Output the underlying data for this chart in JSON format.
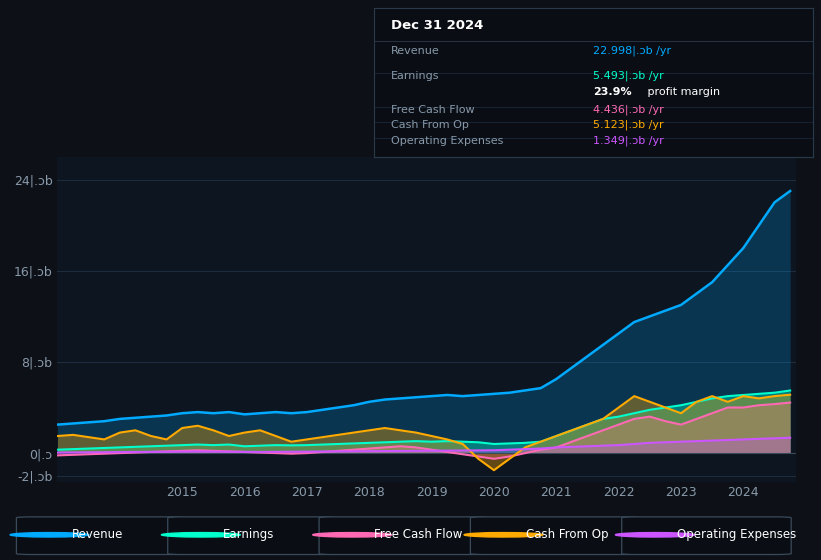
{
  "bg_color": "#0d1117",
  "plot_bg_color": "#0d1520",
  "grid_color": "#1e2d40",
  "years": [
    2013.0,
    2013.25,
    2013.5,
    2013.75,
    2014.0,
    2014.25,
    2014.5,
    2014.75,
    2015.0,
    2015.25,
    2015.5,
    2015.75,
    2016.0,
    2016.25,
    2016.5,
    2016.75,
    2017.0,
    2017.25,
    2017.5,
    2017.75,
    2018.0,
    2018.25,
    2018.5,
    2018.75,
    2019.0,
    2019.25,
    2019.5,
    2019.75,
    2020.0,
    2020.25,
    2020.5,
    2020.75,
    2021.0,
    2021.25,
    2021.5,
    2021.75,
    2022.0,
    2022.25,
    2022.5,
    2022.75,
    2023.0,
    2023.25,
    2023.5,
    2023.75,
    2024.0,
    2024.25,
    2024.5,
    2024.75
  ],
  "revenue": [
    2.5,
    2.6,
    2.7,
    2.8,
    3.0,
    3.1,
    3.2,
    3.3,
    3.5,
    3.6,
    3.5,
    3.6,
    3.4,
    3.5,
    3.6,
    3.5,
    3.6,
    3.8,
    4.0,
    4.2,
    4.5,
    4.7,
    4.8,
    4.9,
    5.0,
    5.1,
    5.0,
    5.1,
    5.2,
    5.3,
    5.5,
    5.7,
    6.5,
    7.5,
    8.5,
    9.5,
    10.5,
    11.5,
    12.0,
    12.5,
    13.0,
    14.0,
    15.0,
    16.5,
    18.0,
    20.0,
    22.0,
    23.0
  ],
  "earnings": [
    0.3,
    0.35,
    0.4,
    0.45,
    0.5,
    0.55,
    0.6,
    0.65,
    0.7,
    0.75,
    0.7,
    0.75,
    0.6,
    0.65,
    0.7,
    0.68,
    0.7,
    0.75,
    0.8,
    0.85,
    0.9,
    0.95,
    1.0,
    1.05,
    1.0,
    1.05,
    1.0,
    0.95,
    0.8,
    0.85,
    0.9,
    1.0,
    1.5,
    2.0,
    2.5,
    3.0,
    3.2,
    3.5,
    3.8,
    4.0,
    4.2,
    4.5,
    4.8,
    5.0,
    5.1,
    5.2,
    5.3,
    5.493
  ],
  "free_cash_flow": [
    -0.2,
    -0.15,
    -0.1,
    -0.05,
    0.0,
    0.05,
    0.1,
    0.15,
    0.2,
    0.25,
    0.2,
    0.15,
    0.1,
    0.05,
    0.0,
    -0.05,
    0.0,
    0.1,
    0.2,
    0.3,
    0.4,
    0.5,
    0.6,
    0.5,
    0.3,
    0.1,
    -0.1,
    -0.3,
    -0.5,
    -0.3,
    0.0,
    0.3,
    0.5,
    1.0,
    1.5,
    2.0,
    2.5,
    3.0,
    3.2,
    2.8,
    2.5,
    3.0,
    3.5,
    4.0,
    4.0,
    4.2,
    4.3,
    4.436
  ],
  "cash_from_op": [
    1.5,
    1.6,
    1.4,
    1.2,
    1.8,
    2.0,
    1.5,
    1.2,
    2.2,
    2.4,
    2.0,
    1.5,
    1.8,
    2.0,
    1.5,
    1.0,
    1.2,
    1.4,
    1.6,
    1.8,
    2.0,
    2.2,
    2.0,
    1.8,
    1.5,
    1.2,
    0.8,
    -0.5,
    -1.5,
    -0.5,
    0.5,
    1.0,
    1.5,
    2.0,
    2.5,
    3.0,
    4.0,
    5.0,
    4.5,
    4.0,
    3.5,
    4.5,
    5.0,
    4.5,
    5.0,
    4.8,
    5.0,
    5.123
  ],
  "op_expenses": [
    0.05,
    0.06,
    0.07,
    0.08,
    0.09,
    0.1,
    0.11,
    0.12,
    0.13,
    0.14,
    0.13,
    0.12,
    0.11,
    0.1,
    0.11,
    0.12,
    0.13,
    0.14,
    0.15,
    0.16,
    0.17,
    0.18,
    0.19,
    0.2,
    0.21,
    0.22,
    0.23,
    0.24,
    0.25,
    0.3,
    0.35,
    0.4,
    0.5,
    0.55,
    0.6,
    0.65,
    0.7,
    0.8,
    0.9,
    0.95,
    1.0,
    1.05,
    1.1,
    1.15,
    1.2,
    1.25,
    1.3,
    1.349
  ],
  "revenue_color": "#00aaff",
  "earnings_color": "#00ffcc",
  "fcf_color": "#ff69b4",
  "cashop_color": "#ffaa00",
  "opex_color": "#cc55ff",
  "ylim": [
    -2.5,
    26
  ],
  "xtick_years": [
    2015,
    2016,
    2017,
    2018,
    2019,
    2020,
    2021,
    2022,
    2023,
    2024
  ],
  "info_box": {
    "date": "Dec 31 2024",
    "revenue_val": "22.998|.ɔb /yr",
    "earnings_val": "5.493|.ɔb /yr",
    "profit_margin": "23.9% profit margin",
    "fcf_val": "4.436|.ɔb /yr",
    "cashop_val": "5.123|.ɔb /yr",
    "opex_val": "1.349|.ɔb /yr"
  },
  "legend_items": [
    "Revenue",
    "Earnings",
    "Free Cash Flow",
    "Cash From Op",
    "Operating Expenses"
  ]
}
